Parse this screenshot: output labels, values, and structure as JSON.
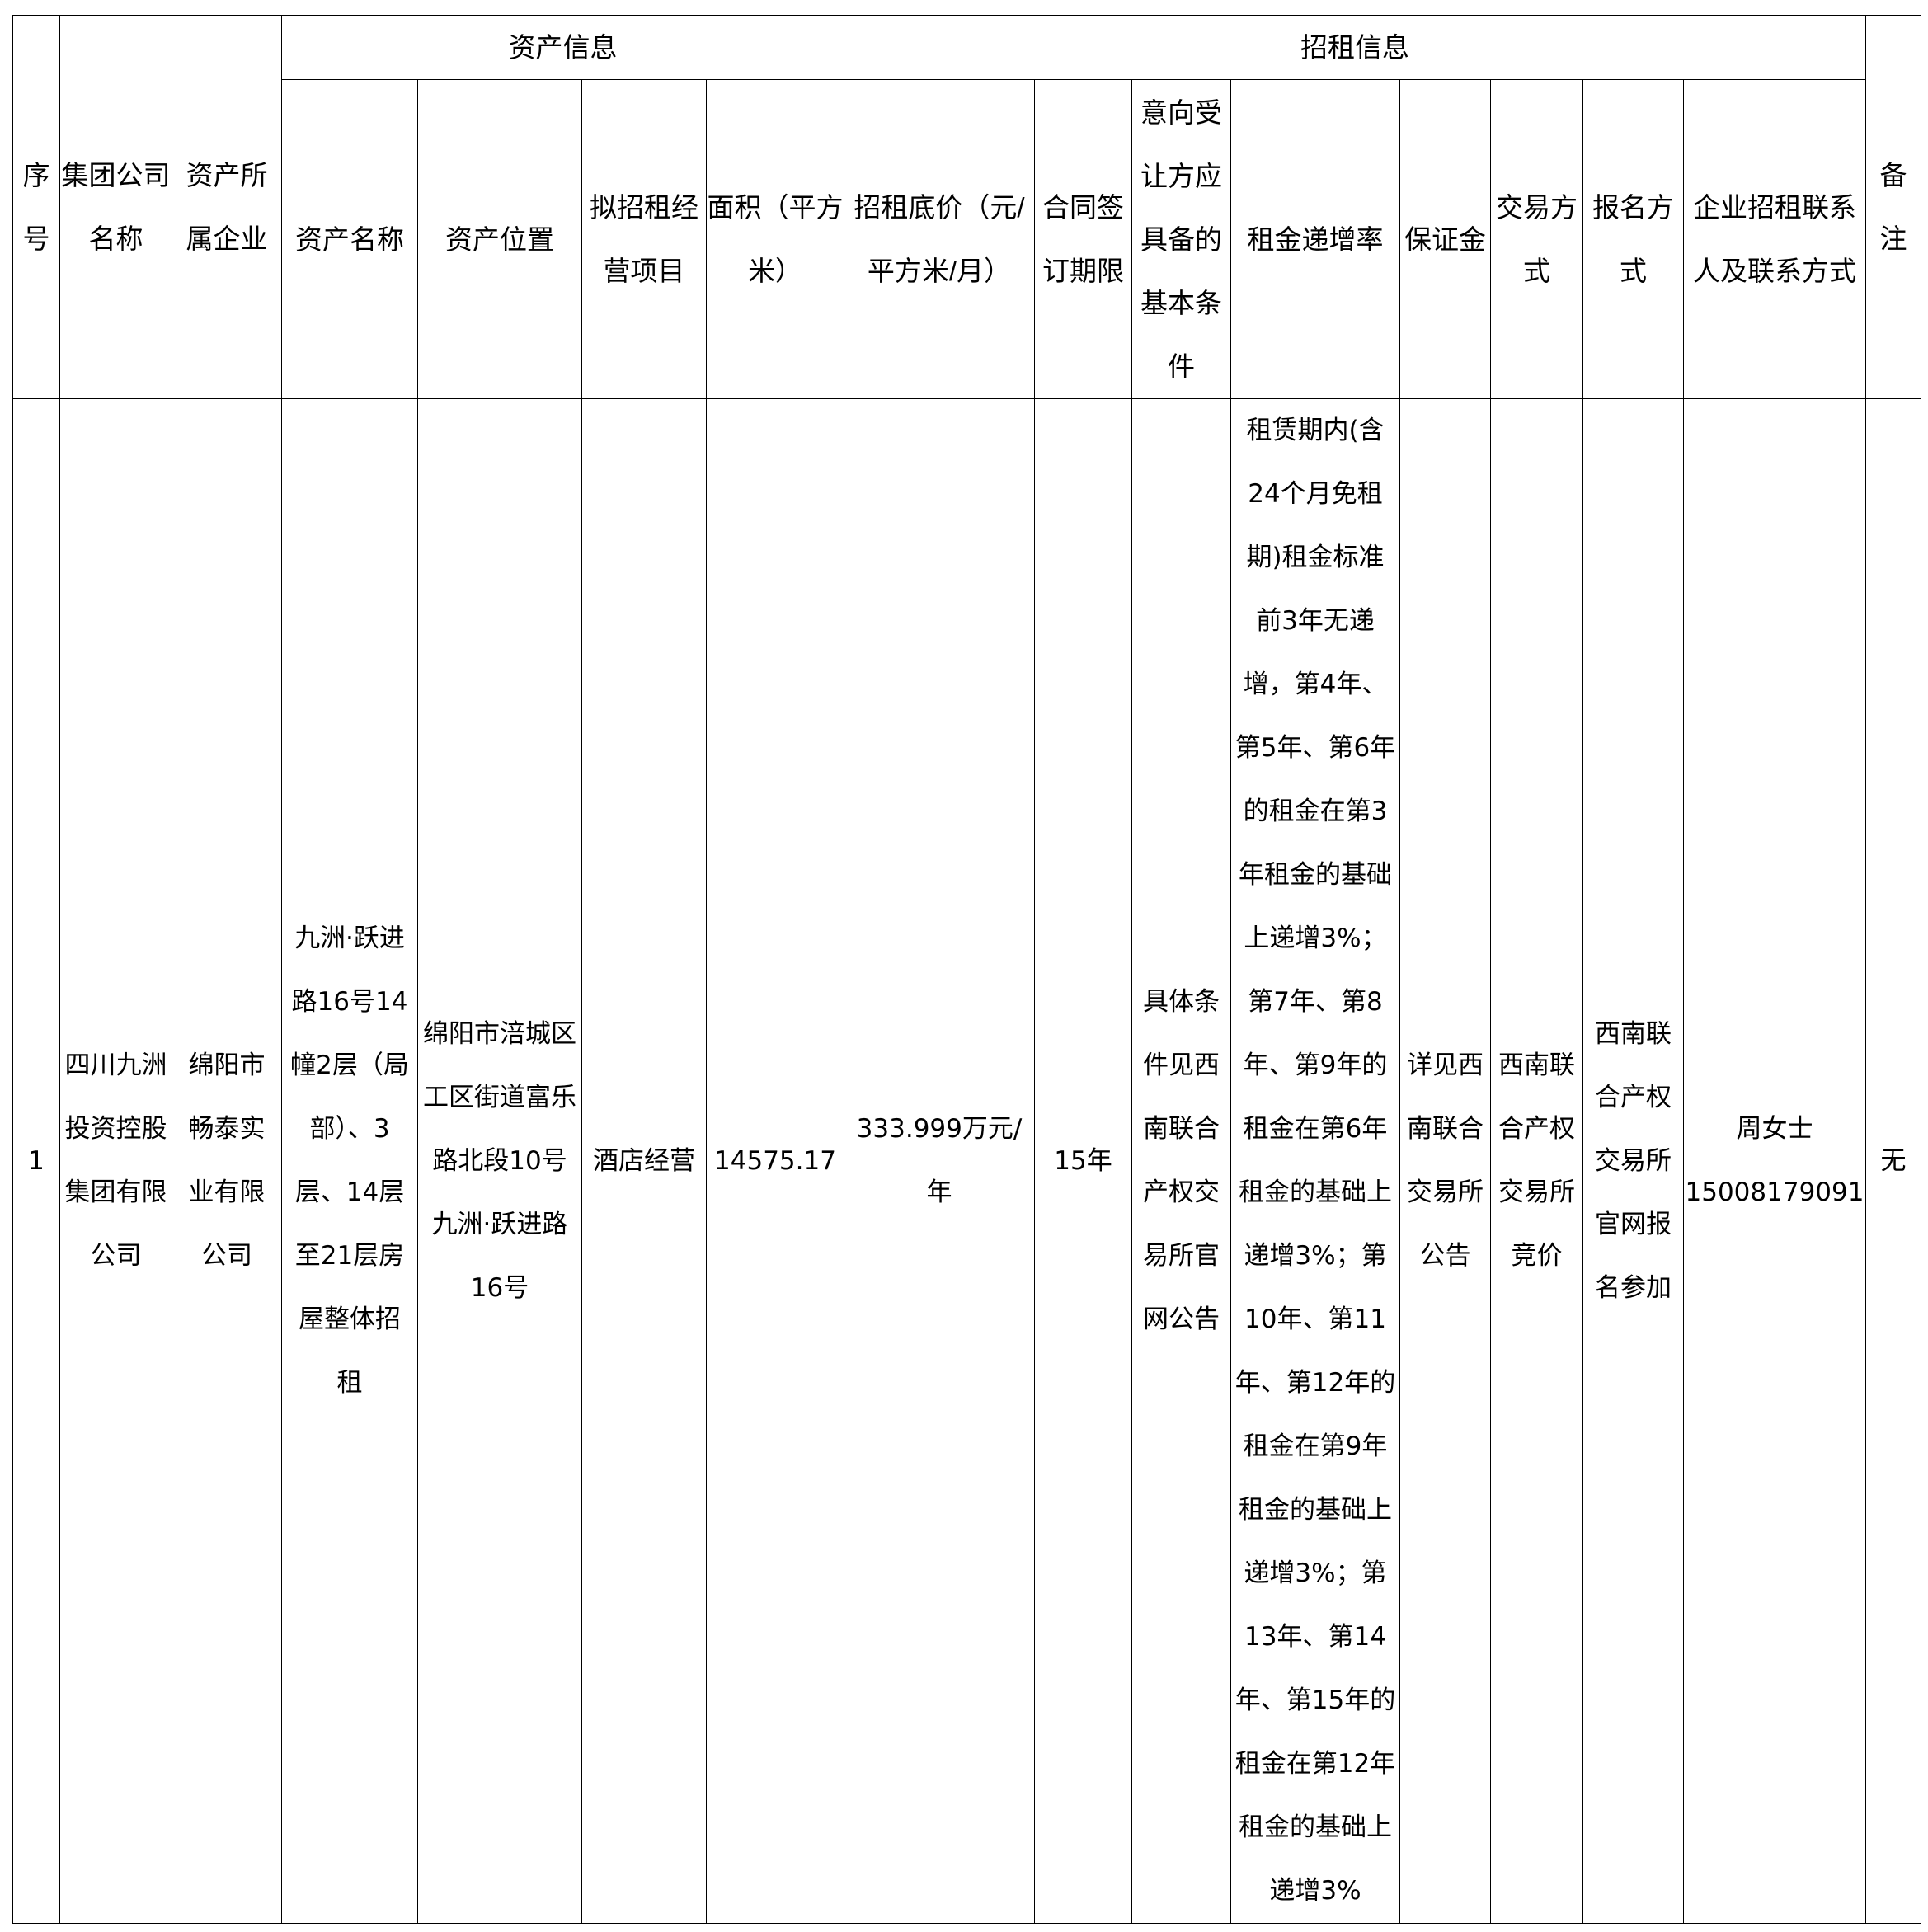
{
  "headers": {
    "seq": "序\n号",
    "group_company": "集团公司\n名称",
    "owner_enterprise": "资产所\n属企业",
    "asset_info": "资产信息",
    "lease_info": "招租信息",
    "remarks": "备\n注",
    "asset_name": "资产名称",
    "asset_location": "资产位置",
    "business_project": "拟招租经\n营项目",
    "area": "面积（平方\n米）",
    "base_price": "招租底价（元/\n平方米/月）",
    "contract_term": "合同签\n订期限",
    "conditions": "意向受\n让方应\n具备的\n基本条\n件",
    "rent_increase": "租金递增率",
    "deposit": "保证金",
    "trade_method": "交易方\n式",
    "registration": "报名方\n式",
    "contact": "企业招租联系\n人及联系方式"
  },
  "rows": [
    {
      "seq": "1",
      "group_company": "四川九洲\n投资控股\n集团有限\n公司",
      "owner_enterprise": "绵阳市\n畅泰实\n业有限\n公司",
      "asset_name": "九洲·跃进\n路16号14\n幢2层（局\n部）、3\n层、14层\n至21层房\n屋整体招\n租",
      "asset_location": "绵阳市涪城区\n工区街道富乐\n路北段10号\n九洲·跃进路\n16号",
      "business_project": "酒店经营",
      "area": "14575.17",
      "base_price": "333.999万元/\n年",
      "contract_term": "15年",
      "conditions": "具体条\n件见西\n南联合\n产权交\n易所官\n网公告",
      "rent_increase": "租赁期内(含\n24个月免租\n期)租金标准\n前3年无递\n增，第4年、\n第5年、第6年\n的租金在第3\n年租金的基础\n上递增3%；\n第7年、第8\n年、第9年的\n租金在第6年\n租金的基础上\n递增3%；第\n10年、第11\n年、第12年的\n租金在第9年\n租金的基础上\n递增3%；第\n13年、第14\n年、第15年的\n租金在第12年\n租金的基础上\n递增3%",
      "deposit": "详见西\n南联合\n交易所\n公告",
      "trade_method": "西南联\n合产权\n交易所\n竞价",
      "registration": "西南联\n合产权\n交易所\n官网报\n名参加",
      "contact": "周女士\n15008179091",
      "remarks": "无"
    }
  ]
}
